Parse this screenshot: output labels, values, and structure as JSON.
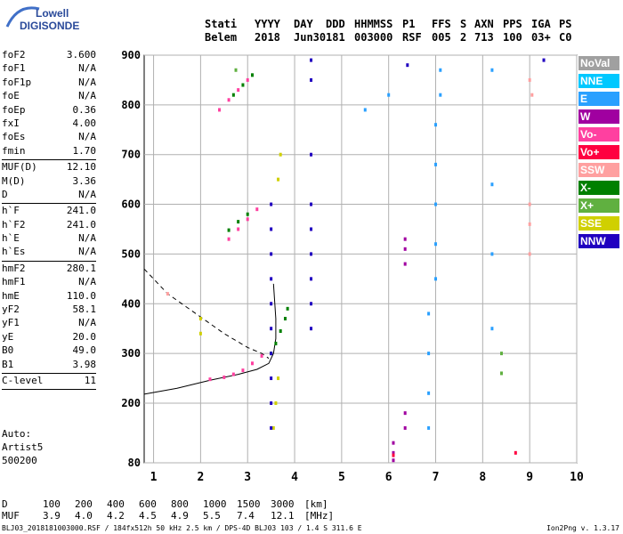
{
  "logo": {
    "line1": "Lowell",
    "line2": "DIGISONDE"
  },
  "header": {
    "row1": [
      "Stati",
      "YYYY",
      "DAY",
      "DDD",
      "HHMMSS",
      "P1",
      "FFS",
      "S",
      "AXN",
      "PPS",
      "IGA",
      "PS"
    ],
    "row2": [
      "Belem",
      "2018",
      "Jun30",
      "181",
      "003000",
      "RSF",
      "005",
      "2",
      "713",
      "100",
      "03+",
      "C0"
    ]
  },
  "params": {
    "group1": [
      {
        "name": "foF2",
        "value": "3.600"
      },
      {
        "name": "foF1",
        "value": "N/A"
      },
      {
        "name": "foF1p",
        "value": "N/A"
      },
      {
        "name": "foE",
        "value": "N/A"
      },
      {
        "name": "foEp",
        "value": "0.36"
      },
      {
        "name": "fxI",
        "value": "4.00"
      },
      {
        "name": "foEs",
        "value": "N/A"
      },
      {
        "name": "fmin",
        "value": "1.70"
      }
    ],
    "group2": [
      {
        "name": "MUF(D)",
        "value": "12.10"
      },
      {
        "name": "M(D)",
        "value": "3.36"
      },
      {
        "name": "D",
        "value": "N/A"
      }
    ],
    "group3": [
      {
        "name": "h`F",
        "value": "241.0"
      },
      {
        "name": "h`F2",
        "value": "241.0"
      },
      {
        "name": "h`E",
        "value": "N/A"
      },
      {
        "name": "h`Es",
        "value": "N/A"
      }
    ],
    "group4": [
      {
        "name": "hmF2",
        "value": "280.1"
      },
      {
        "name": "hmF1",
        "value": "N/A"
      },
      {
        "name": "hmE",
        "value": "110.0"
      },
      {
        "name": "yF2",
        "value": "58.1"
      },
      {
        "name": "yF1",
        "value": "N/A"
      },
      {
        "name": "yE",
        "value": "20.0"
      },
      {
        "name": "B0",
        "value": "49.0"
      },
      {
        "name": "B1",
        "value": "3.98"
      }
    ],
    "group5": [
      {
        "name": "C-level",
        "value": "11"
      }
    ]
  },
  "auto": {
    "line1": "Auto:",
    "line2": "Artist5",
    "line3": "500200"
  },
  "legend": [
    {
      "label": "NoVal",
      "color": "#a0a0a0"
    },
    {
      "label": "NNE",
      "color": "#00c8ff"
    },
    {
      "label": "E",
      "color": "#2aa0ff"
    },
    {
      "label": "W",
      "color": "#a000a0"
    },
    {
      "label": "Vo-",
      "color": "#ff40a0"
    },
    {
      "label": "Vo+",
      "color": "#ff0040"
    },
    {
      "label": "SSW",
      "color": "#ffa0a0"
    },
    {
      "label": "X-",
      "color": "#008000"
    },
    {
      "label": "X+",
      "color": "#60b040"
    },
    {
      "label": "SSE",
      "color": "#d0d000"
    },
    {
      "label": "NNW",
      "color": "#2000c0"
    }
  ],
  "dist_table": {
    "d_label": "D",
    "d_values": [
      "100",
      "200",
      "400",
      "600",
      "800",
      "1000",
      "1500",
      "3000"
    ],
    "d_unit": "[km]",
    "muf_label": "MUF",
    "muf_values": [
      "3.9",
      "4.0",
      "4.2",
      "4.5",
      "4.9",
      "5.5",
      "7.4",
      "12.1"
    ],
    "muf_unit": "[MHz]"
  },
  "footer": {
    "left": "BLJ03_2018181003000.RSF / 184fx512h 50 kHz 2.5 km / DPS-4D BLJ03 103 / 1.4 S 311.6 E",
    "right": "Ion2Png v. 1.3.17"
  },
  "chart_data": {
    "type": "scatter",
    "xlim": [
      0.8,
      10
    ],
    "ylim": [
      80,
      900
    ],
    "xticks": [
      1,
      2,
      3,
      4,
      5,
      6,
      7,
      8,
      9,
      10
    ],
    "yticks": [
      80,
      200,
      300,
      400,
      500,
      600,
      700,
      800,
      900
    ],
    "series": [
      {
        "name": "Vo-",
        "color": "#ff40a0",
        "points": [
          [
            2.2,
            248
          ],
          [
            2.5,
            252
          ],
          [
            2.7,
            258
          ],
          [
            2.9,
            266
          ],
          [
            3.1,
            280
          ],
          [
            3.3,
            295
          ],
          [
            2.6,
            530
          ],
          [
            2.8,
            550
          ],
          [
            3.0,
            570
          ],
          [
            3.2,
            590
          ],
          [
            2.4,
            790
          ],
          [
            2.6,
            810
          ],
          [
            2.8,
            830
          ],
          [
            3.0,
            850
          ]
        ]
      },
      {
        "name": "X-",
        "color": "#008000",
        "points": [
          [
            3.5,
            300
          ],
          [
            3.6,
            320
          ],
          [
            3.7,
            345
          ],
          [
            3.8,
            370
          ],
          [
            3.85,
            390
          ],
          [
            2.6,
            548
          ],
          [
            2.8,
            565
          ],
          [
            3.0,
            580
          ],
          [
            2.7,
            820
          ],
          [
            2.9,
            840
          ],
          [
            3.1,
            860
          ]
        ]
      },
      {
        "name": "SSE",
        "color": "#d0d000",
        "points": [
          [
            3.55,
            150
          ],
          [
            3.6,
            200
          ],
          [
            3.65,
            250
          ],
          [
            2.0,
            370
          ],
          [
            2.0,
            340
          ],
          [
            3.65,
            650
          ],
          [
            3.7,
            700
          ]
        ]
      },
      {
        "name": "NNW",
        "color": "#2000c0",
        "points": [
          [
            3.5,
            150
          ],
          [
            3.5,
            200
          ],
          [
            3.5,
            250
          ],
          [
            3.5,
            300
          ],
          [
            3.5,
            350
          ],
          [
            3.5,
            400
          ],
          [
            3.5,
            450
          ],
          [
            3.5,
            500
          ],
          [
            3.5,
            550
          ],
          [
            3.5,
            600
          ],
          [
            4.35,
            350
          ],
          [
            4.35,
            400
          ],
          [
            4.35,
            450
          ],
          [
            4.35,
            500
          ],
          [
            4.35,
            550
          ],
          [
            4.35,
            600
          ],
          [
            4.35,
            700
          ],
          [
            4.35,
            850
          ],
          [
            4.35,
            890
          ],
          [
            6.4,
            880
          ],
          [
            9.3,
            890
          ]
        ]
      },
      {
        "name": "E",
        "color": "#2aa0ff",
        "points": [
          [
            6.85,
            150
          ],
          [
            6.85,
            220
          ],
          [
            6.85,
            300
          ],
          [
            6.85,
            380
          ],
          [
            7.0,
            450
          ],
          [
            7.0,
            520
          ],
          [
            7.0,
            600
          ],
          [
            7.0,
            680
          ],
          [
            7.0,
            760
          ],
          [
            7.1,
            820
          ],
          [
            7.1,
            870
          ],
          [
            8.2,
            870
          ],
          [
            8.2,
            640
          ],
          [
            8.2,
            500
          ],
          [
            8.2,
            350
          ],
          [
            6.0,
            820
          ],
          [
            5.5,
            790
          ]
        ]
      },
      {
        "name": "W",
        "color": "#a000a0",
        "points": [
          [
            6.35,
            150
          ],
          [
            6.35,
            180
          ],
          [
            6.35,
            480
          ],
          [
            6.35,
            510
          ],
          [
            6.35,
            530
          ],
          [
            6.1,
            120
          ],
          [
            6.1,
            100
          ],
          [
            6.1,
            85
          ]
        ]
      },
      {
        "name": "SSW",
        "color": "#ffa0a0",
        "points": [
          [
            1.3,
            420
          ],
          [
            9.0,
            600
          ],
          [
            9.0,
            560
          ],
          [
            9.0,
            500
          ],
          [
            9.0,
            850
          ],
          [
            9.05,
            820
          ]
        ]
      },
      {
        "name": "X+",
        "color": "#60b040",
        "points": [
          [
            2.75,
            870
          ],
          [
            8.4,
            260
          ],
          [
            8.4,
            300
          ]
        ]
      },
      {
        "name": "Vo+",
        "color": "#ff0040",
        "points": [
          [
            8.7,
            100
          ],
          [
            6.1,
            95
          ]
        ]
      }
    ]
  }
}
